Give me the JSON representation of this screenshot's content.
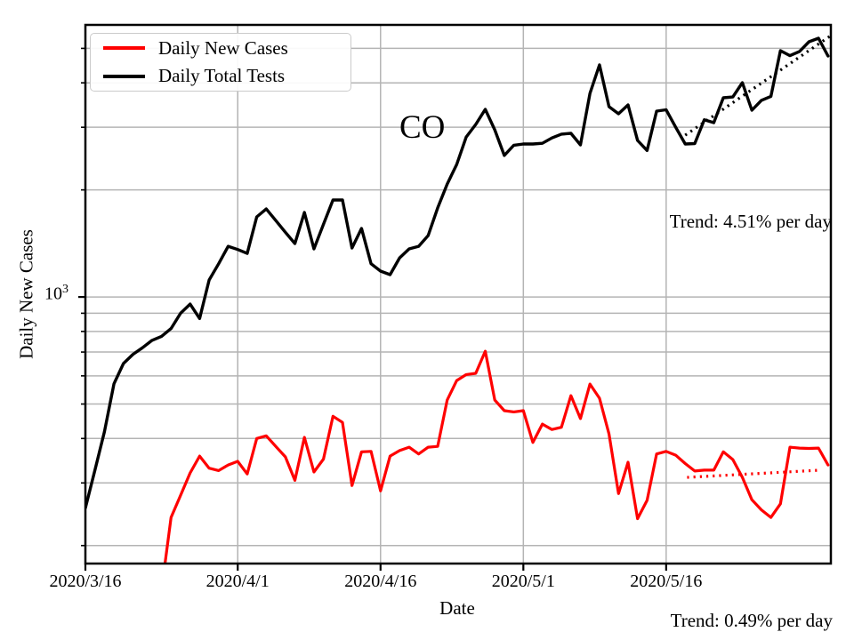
{
  "figure": {
    "background": "#ffffff",
    "annotation_co": "CO",
    "trend_black_label": "Trend: 4.51% per day",
    "trend_red_label": "Trend: 0.49% per day",
    "y_major_tick_base": "10",
    "y_major_tick_exp": "3"
  },
  "axes": {
    "x_label": "Date",
    "y_label": "Daily New Cases",
    "x_ticks": [
      {
        "day": 0,
        "label": "2020/3/16"
      },
      {
        "day": 16,
        "label": "2020/4/1"
      },
      {
        "day": 31,
        "label": "2020/4/16"
      },
      {
        "day": 46,
        "label": "2020/5/1"
      },
      {
        "day": 61,
        "label": "2020/5/16"
      }
    ],
    "y_grid_values": [
      200,
      300,
      400,
      500,
      600,
      700,
      800,
      900,
      1000,
      2000,
      3000,
      4000,
      5000
    ],
    "y_major_value": 1000,
    "grid_color": "#b4b4b4",
    "spine_color": "#000000"
  },
  "legend": {
    "entries": [
      {
        "label": "Daily New Cases",
        "color": "#ff0000"
      },
      {
        "label": "Daily Total Tests",
        "color": "#000000"
      }
    ]
  },
  "chart_data": {
    "type": "line",
    "title": "CO",
    "xlabel": "Date",
    "ylabel": "Daily New Cases",
    "y_scale": "log",
    "ylim": [
      178,
      5821
    ],
    "xlim_days": [
      0,
      78.3
    ],
    "x_start_date": "2020/3/16",
    "x_unit": "days since 2020/3/16",
    "grid": true,
    "legend_position": "upper-left",
    "series": [
      {
        "name": "Daily New Cases",
        "color": "#ff0000",
        "linewidth": 3.2,
        "values": [
          null,
          null,
          null,
          null,
          null,
          null,
          null,
          null,
          150,
          240,
          277,
          320,
          357,
          330,
          325,
          337,
          345,
          318,
          400,
          407,
          380,
          355,
          305,
          403,
          322,
          350,
          462,
          444,
          295,
          367,
          368,
          285,
          357,
          370,
          378,
          362,
          378,
          380,
          513,
          582,
          605,
          610,
          704,
          513,
          479,
          475,
          479,
          390,
          439,
          424,
          430,
          528,
          455,
          569,
          519,
          412,
          280,
          343,
          238,
          268,
          362,
          368,
          359,
          340,
          324,
          326,
          326,
          367,
          349,
          311,
          269,
          252,
          240,
          262,
          378,
          376,
          375,
          376,
          337
        ]
      },
      {
        "name": "Daily Total Tests",
        "color": "#000000",
        "linewidth": 3.4,
        "values": [
          255,
          326,
          418,
          570,
          650,
          690,
          720,
          755,
          775,
          815,
          900,
          955,
          870,
          1116,
          1240,
          1388,
          1360,
          1326,
          1679,
          1768,
          1640,
          1520,
          1413,
          1728,
          1365,
          1600,
          1873,
          1873,
          1373,
          1558,
          1240,
          1182,
          1155,
          1288,
          1365,
          1388,
          1488,
          1780,
          2077,
          2358,
          2818,
          3055,
          3370,
          2950,
          2500,
          2670,
          2692,
          2692,
          2704,
          2800,
          2870,
          2884,
          2676,
          3737,
          4493,
          3428,
          3273,
          3467,
          2754,
          2582,
          3330,
          3360,
          3000,
          2692,
          2700,
          3150,
          3090,
          3631,
          3650,
          4004,
          3350,
          3572,
          3664,
          4925,
          4770,
          4900,
          5218,
          5340,
          4760
        ]
      }
    ],
    "trend_lines": [
      {
        "series": "Daily Total Tests",
        "color": "#000000",
        "label": "Trend: 4.51% per day",
        "start_day": 63.0,
        "start_value": 2850,
        "end_day": 78.3,
        "end_value": 5430
      },
      {
        "series": "Daily New Cases",
        "color": "#ff0000",
        "label": "Trend: 0.49% per day",
        "start_day": 63.2,
        "start_value": 311,
        "end_day": 77.3,
        "end_value": 326
      }
    ]
  }
}
